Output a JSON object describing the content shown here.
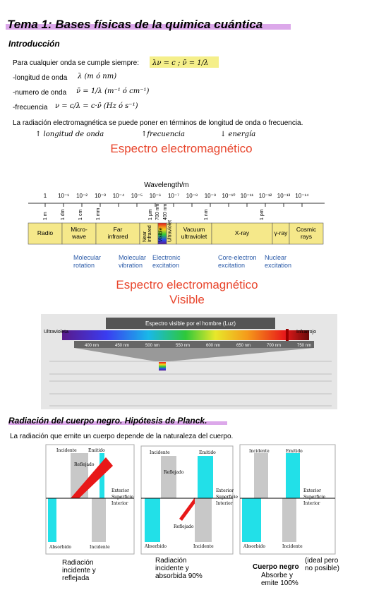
{
  "header": {
    "title": "Tema 1: Bases físicas de la quimica cuántica"
  },
  "intro": {
    "heading": "Introducción",
    "lines": [
      {
        "text": "Para cualquier onda se cumple siempre:",
        "note": "λν = c ;  ν̄ = 1/λ"
      },
      {
        "text": "-longitud de onda",
        "note": "λ (m ó nm)"
      },
      {
        "text": "-numero de onda",
        "note": "ν̄ = 1/λ (m⁻¹ ó cm⁻¹)"
      },
      {
        "text": "-frecuencia",
        "note": "ν = c/λ = c·ν̄ (Hz ó s⁻¹)"
      }
    ],
    "sentence": "La radiación electromagnética se puede poner en términos de longitud de onda o frecuencia.",
    "notes": [
      "↑ longitud de onda",
      "↑frecuencia",
      "↓ energía"
    ]
  },
  "spectrum": {
    "title": "Espectro electromagnético",
    "axis_label": "Wavelength/m",
    "ticks": [
      "1",
      "10⁻¹",
      "10⁻²",
      "10⁻³",
      "10⁻⁴",
      "10⁻⁵",
      "10⁻⁶",
      "10⁻⁷",
      "10⁻⁸",
      "10⁻⁹",
      "10⁻¹⁰",
      "10⁻¹¹",
      "10⁻¹²",
      "10⁻¹³",
      "10⁻¹⁴"
    ],
    "units": [
      "1 m",
      "1 dm",
      "1 cm",
      "1 mm",
      "1 μm",
      "700 nm",
      "400 nm",
      "1 nm",
      "1 pm"
    ],
    "bands": [
      [
        "Radio"
      ],
      [
        "Micro-",
        "wave"
      ],
      [
        "Far",
        "infrared"
      ],
      [
        "Near",
        "infrared"
      ],
      [
        "Visible"
      ],
      [
        "Ultraviolet"
      ],
      [
        "Vacuum",
        "ultraviolet"
      ],
      [
        "X-ray"
      ],
      [
        "γ-ray"
      ],
      [
        "Cosmic",
        "rays"
      ]
    ],
    "processes": [
      [
        "Molecular",
        "rotation"
      ],
      [
        "Molecular",
        "vibration"
      ],
      [
        "Electronic",
        "excitation"
      ],
      [
        "Core-electron",
        "excitation"
      ],
      [
        "Nuclear",
        "excitation"
      ]
    ]
  },
  "visible": {
    "title_lines": [
      "Espectro electromagnético",
      "Visible"
    ],
    "banner": "Espectro visible por el hombre (Luz)",
    "left": "Ultravioleta",
    "right": "Infrarrojo",
    "nm": [
      "400 nm",
      "450 nm",
      "500 nm",
      "550 nm",
      "600 nm",
      "650 nm",
      "700 nm",
      "750 nm"
    ]
  },
  "blackbody": {
    "heading": "Radiación del cuerpo negro. Hipótesis de Planck.",
    "sentence": "La radiación que emite un cuerpo depende de la naturaleza del cuerpo.",
    "panels": [
      {
        "labels": [
          "Incidente",
          "Emitido",
          "Reflejado",
          "Exterior",
          "Superficie",
          "Interior",
          "Absorbido",
          "Incidente"
        ],
        "caption": [
          "Radiación",
          "incidente y",
          "reflejada"
        ]
      },
      {
        "labels": [
          "Incidente",
          "Emitido",
          "Reflejado",
          "Reflejado",
          "Exterior",
          "Superficie",
          "Interior",
          "Absorbido",
          "Incidente"
        ],
        "caption": [
          "Radiación",
          "incidente y",
          "absorbida 90%"
        ]
      },
      {
        "labels": [
          "Incidente",
          "Emitido",
          "Exterior",
          "Superficie",
          "Interior",
          "Absorbido",
          "Incidente"
        ],
        "caption": [
          "Cuerpo negro"
        ],
        "note": [
          "(ideal pero",
          "no posible)"
        ],
        "extra": [
          "Absorbe y",
          "emite 100%"
        ]
      }
    ]
  }
}
